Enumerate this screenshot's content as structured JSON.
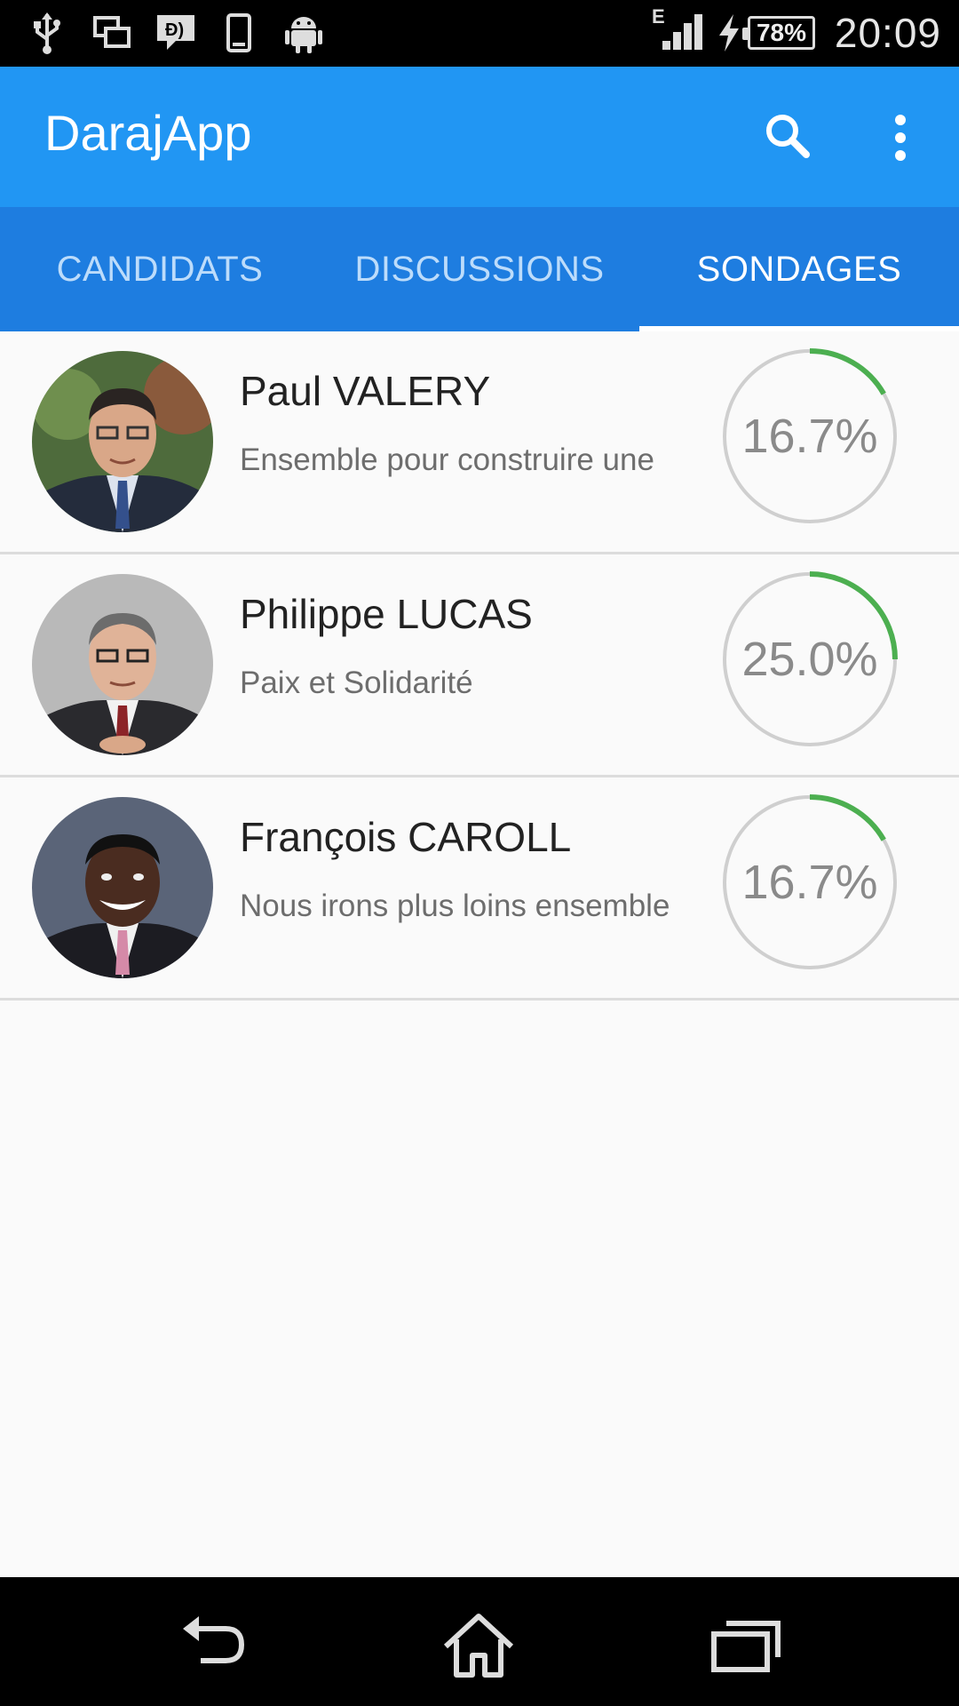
{
  "status_bar": {
    "time": "20:09",
    "battery": "78%",
    "network": "E",
    "icons": [
      "usb-icon",
      "screen-mirror-icon",
      "message-icon",
      "phone-icon",
      "android-icon",
      "signal-icon",
      "charging-icon",
      "battery-icon"
    ]
  },
  "app_bar": {
    "title": "DarajApp",
    "search_icon": "search-icon",
    "menu_icon": "more-vert-icon"
  },
  "tabs": [
    {
      "label": "CANDIDATS",
      "active": false
    },
    {
      "label": "DISCUSSIONS",
      "active": false
    },
    {
      "label": "SONDAGES",
      "active": true
    }
  ],
  "candidates": [
    {
      "name": "Paul VALERY",
      "slogan": "Ensemble pour construire une",
      "percent_label": "16.7%",
      "percent": 16.7
    },
    {
      "name": "Philippe LUCAS",
      "slogan": "Paix et Solidarité",
      "percent_label": "25.0%",
      "percent": 25.0
    },
    {
      "name": "François CAROLL",
      "slogan": "Nous irons plus loins ensemble",
      "percent_label": "16.7%",
      "percent": 16.7
    }
  ],
  "colors": {
    "primary": "#2196f3",
    "primary_dark": "#1e7de0",
    "progress": "#4caf50",
    "track": "#cfcfcf"
  },
  "nav_bar": {
    "icons": [
      "back-icon",
      "home-icon",
      "recent-apps-icon"
    ]
  }
}
